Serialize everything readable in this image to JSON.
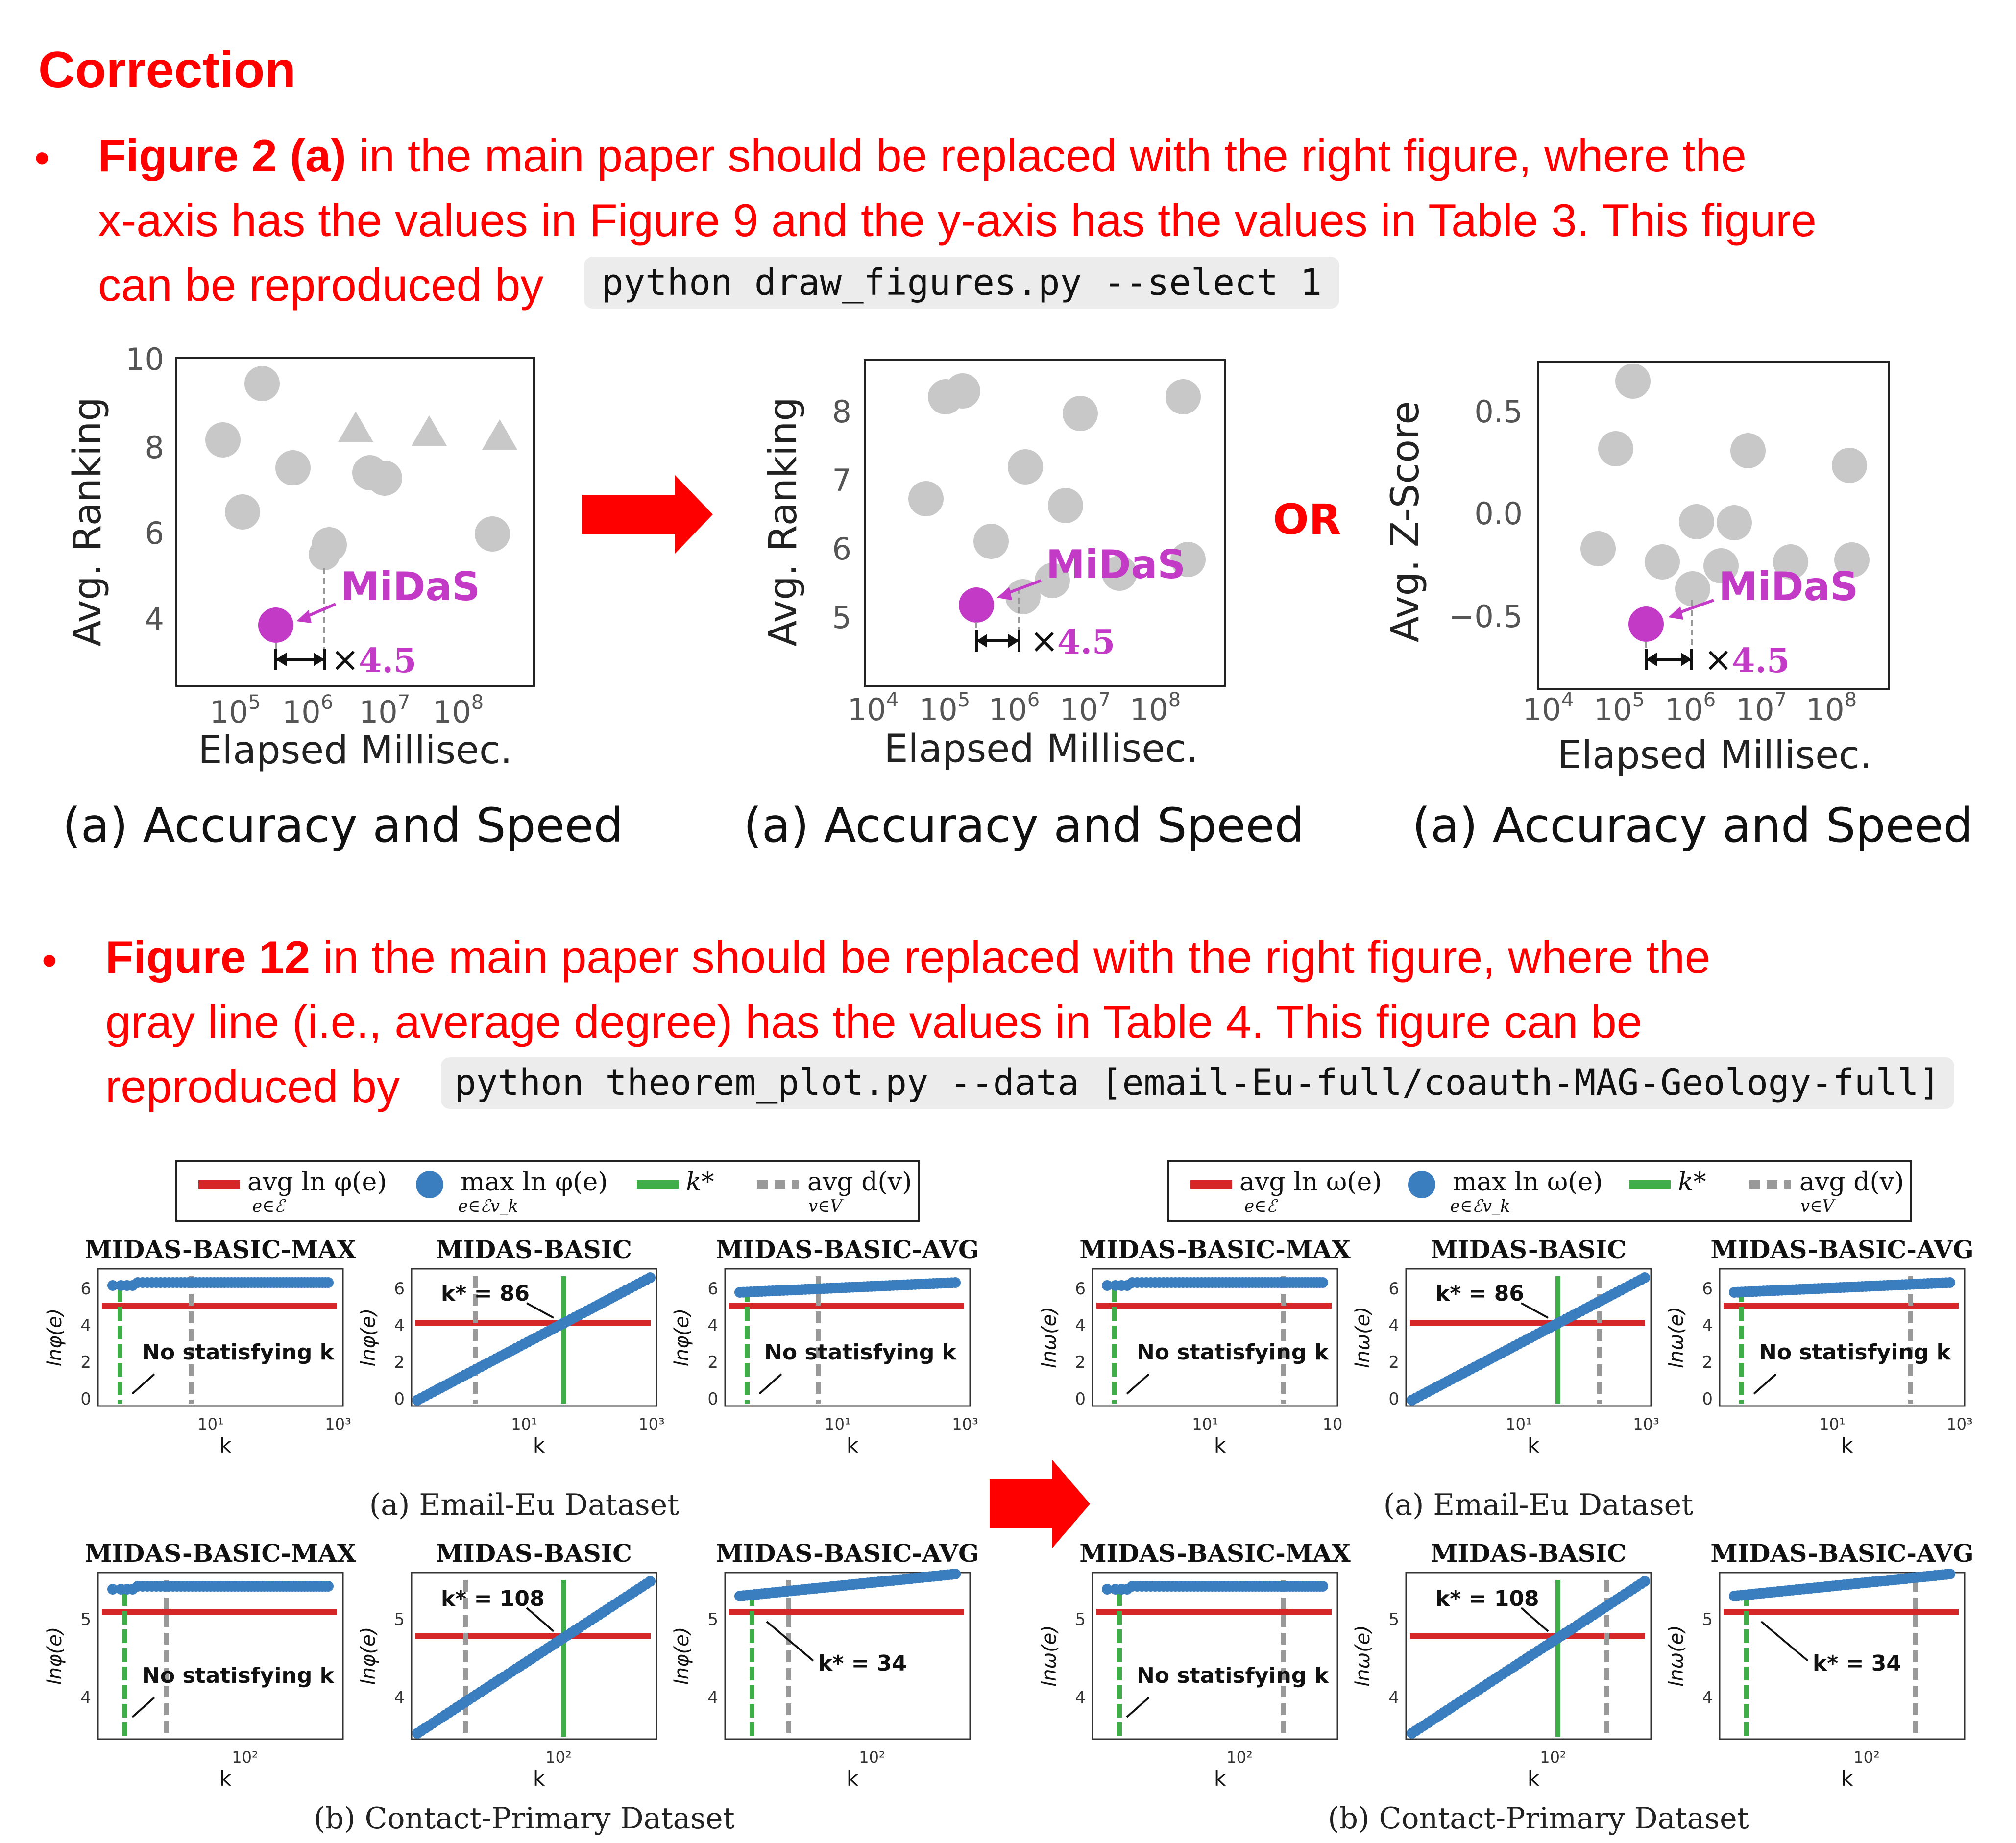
{
  "title": "Correction",
  "bullet1": {
    "bold": "Figure 2 (a)",
    "line1": " in the main paper should be replaced with the right figure, where the",
    "line2": "x-axis has the values in Figure 9 and the y-axis has the values in Table 3. This figure",
    "line3": "can be reproduced by",
    "code": "python draw_figures.py --select 1"
  },
  "bullet2": {
    "bold": "Figure 12",
    "line1": " in the main paper should be replaced with the right figure, where the",
    "line2": "gray line (i.e., average degree) has the values in Table 4. This figure can be",
    "line3": "reproduced by",
    "code": "python theorem_plot.py --data [email-Eu-full/coauth-MAG-Geology-full]"
  },
  "bullet_symbol": "•",
  "or_label": "OR",
  "colors": {
    "accent": "#ff0000",
    "midas": "#c33ac7",
    "gray_marker": "#c8c8c8",
    "blue": "#3a7ebf",
    "green": "#3fae49",
    "redline": "#d62728"
  },
  "fig2": {
    "caption": "(a) Accuracy and Speed",
    "xlabel": "Elapsed Millisec.",
    "method_label": "MiDaS",
    "speedup_times": "×",
    "speedup_value": "4.5",
    "panels": [
      {
        "ylabel": "Avg. Ranking",
        "yticks": [
          "10",
          "8",
          "6",
          "4"
        ],
        "xticks_base": [
          "10",
          "10",
          "10",
          "10"
        ],
        "xticks_exp": [
          "5",
          "6",
          "7",
          "8"
        ]
      },
      {
        "ylabel": "Avg. Ranking",
        "yticks": [
          "8",
          "7",
          "6",
          "5"
        ],
        "xticks_base": [
          "10",
          "10",
          "10",
          "10",
          "10"
        ],
        "xticks_exp": [
          "4",
          "5",
          "6",
          "7",
          "8"
        ]
      },
      {
        "ylabel": "Avg. Z-Score",
        "yticks": [
          "0.5",
          "0.0",
          "−0.5"
        ],
        "xticks_base": [
          "10",
          "10",
          "10",
          "10",
          "10"
        ],
        "xticks_exp": [
          "4",
          "5",
          "6",
          "7",
          "8"
        ]
      }
    ]
  },
  "fig12": {
    "legend_left": {
      "avg": "avg ln φ(e)",
      "avg_sub": "e∈ℰ",
      "max": "max ln φ(e)",
      "max_sub": "e∈ℰv_k",
      "kstar": "k*",
      "avgd": "avg d(v)",
      "avgd_sub": "v∈V"
    },
    "legend_right": {
      "avg": "avg ln ω(e)",
      "avg_sub": "e∈ℰ",
      "max": "max ln ω(e)",
      "max_sub": "e∈ℰv_k",
      "kstar": "k*",
      "avgd": "avg d(v)",
      "avgd_sub": "v∈V"
    },
    "panel_titles": [
      "MIDAS-BASIC-MAX",
      "MIDAS-BASIC",
      "MIDAS-BASIC-AVG"
    ],
    "ylabel_left": "lnφ(e)",
    "ylabel_right": "lnω(e)",
    "xlabel": "k",
    "caption_a": "(a) Email-Eu Dataset",
    "caption_b": "(b) Contact-Primary Dataset",
    "no_k": "No statisfying k",
    "kstar_86": "k* = 86",
    "kstar_108": "k* = 108",
    "kstar_34": "k* = 34",
    "yticks_a": [
      "6",
      "4",
      "2",
      "0"
    ],
    "yticks_b": [
      "5",
      "4"
    ],
    "xticks_a": [
      "10¹",
      "10³"
    ],
    "xticks_a_right_max": [
      "10¹",
      "10"
    ],
    "xticks_b": [
      "10²"
    ]
  }
}
